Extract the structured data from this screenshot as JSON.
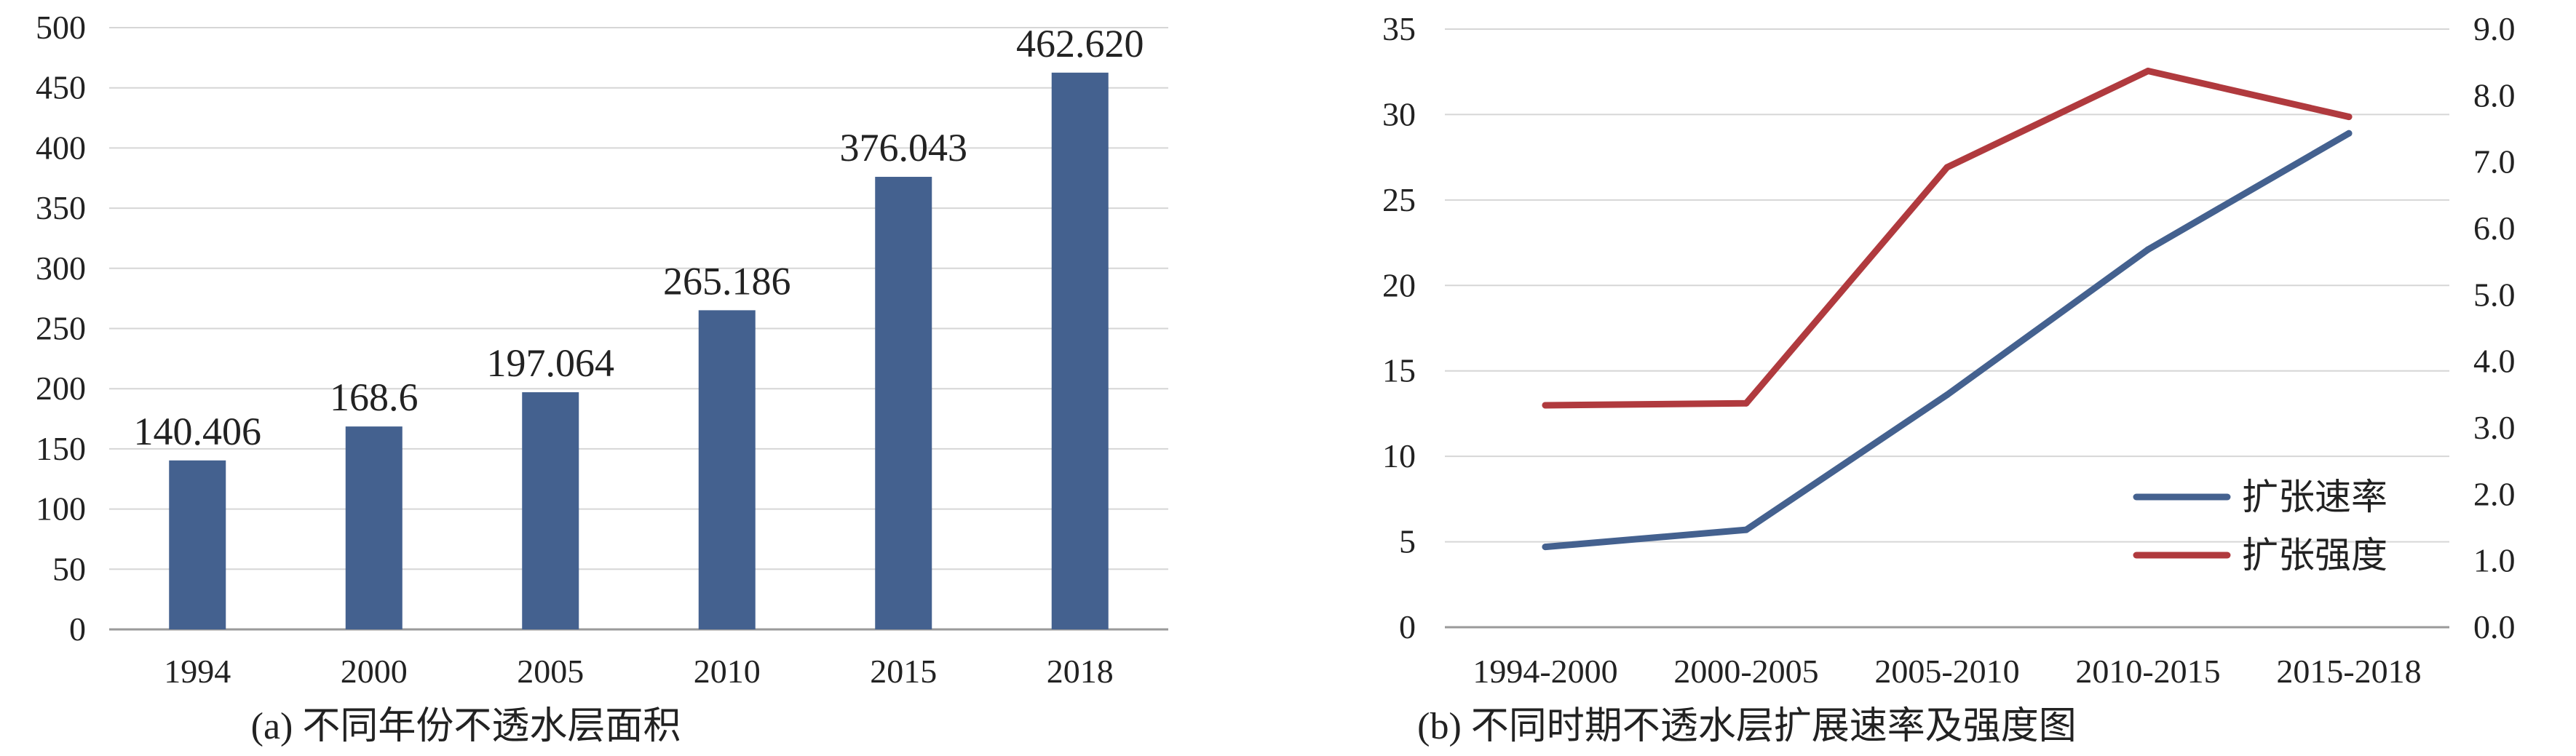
{
  "chart_data": [
    {
      "type": "bar",
      "caption": "(a) 不同年份不透水层面积",
      "categories": [
        "1994",
        "2000",
        "2005",
        "2010",
        "2015",
        "2018"
      ],
      "values": [
        140.406,
        168.6,
        197.064,
        265.186,
        376.043,
        462.62
      ],
      "data_labels": [
        "140.406",
        "168.6",
        "197.064",
        "265.186",
        "376.043",
        "462.620"
      ],
      "ylim": [
        0,
        500
      ],
      "yticks": [
        "0",
        "50",
        "100",
        "150",
        "200",
        "250",
        "300",
        "350",
        "400",
        "450",
        "500"
      ],
      "grid": true,
      "bar_color": "#44618F"
    },
    {
      "type": "line",
      "caption": "(b) 不同时期不透水层扩展速率及强度图",
      "categories": [
        "1994-2000",
        "2000-2005",
        "2005-2010",
        "2010-2015",
        "2015-2018"
      ],
      "series": [
        {
          "name": "扩张速率",
          "axis": "left",
          "color": "#44618F",
          "values": [
            4.7,
            5.7,
            13.6,
            22.1,
            28.9
          ]
        },
        {
          "name": "扩张强度",
          "axis": "right",
          "color": "#B03A3E",
          "values": [
            3.34,
            3.37,
            6.92,
            8.37,
            7.68
          ]
        }
      ],
      "ylim_left": [
        0,
        35
      ],
      "ylim_right": [
        0.0,
        9.0
      ],
      "yticks_left": [
        "0",
        "5",
        "10",
        "15",
        "20",
        "25",
        "30",
        "35"
      ],
      "yticks_right": [
        "0.0",
        "1.0",
        "2.0",
        "3.0",
        "4.0",
        "5.0",
        "6.0",
        "7.0",
        "8.0",
        "9.0"
      ],
      "grid": true,
      "legend_position": "lower-right"
    }
  ]
}
